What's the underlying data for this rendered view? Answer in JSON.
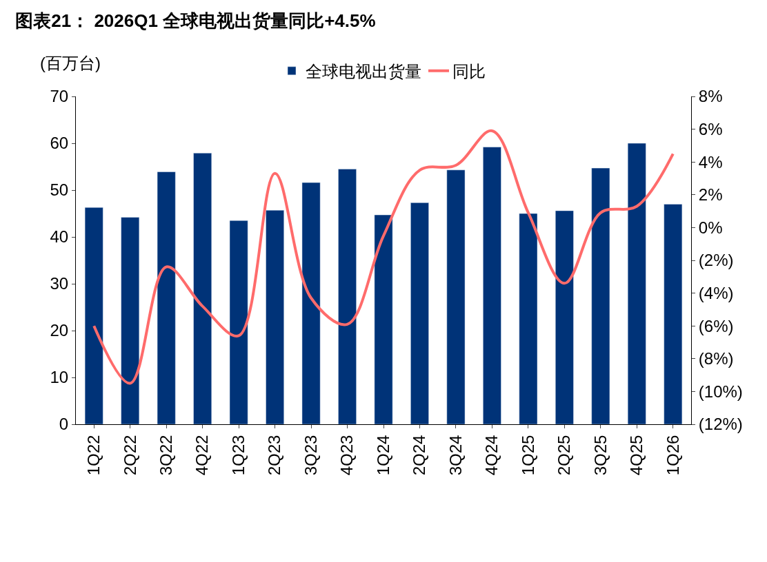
{
  "chart_data": {
    "type": "bar",
    "title": "图表21： 2026Q1 全球电视出货量同比+4.5%",
    "ylabel": "(百万台)",
    "categories": [
      "1Q22",
      "2Q22",
      "3Q22",
      "4Q22",
      "1Q23",
      "2Q23",
      "3Q23",
      "4Q23",
      "1Q24",
      "2Q24",
      "3Q24",
      "4Q24",
      "1Q25",
      "2Q25",
      "3Q25",
      "4Q25",
      "1Q26"
    ],
    "series": [
      {
        "name": "全球电视出货量",
        "color": "#003378",
        "values": [
          46.3,
          44.2,
          53.9,
          57.9,
          43.5,
          45.7,
          51.6,
          54.5,
          44.7,
          47.3,
          54.3,
          59.2,
          45.0,
          45.6,
          54.7,
          60.0,
          47.0
        ]
      },
      {
        "name": "同比",
        "type": "line",
        "axis": "y2",
        "color": "#ff6b6b",
        "values": [
          -6.0,
          -9.5,
          -2.4,
          -4.8,
          -6.6,
          3.3,
          -4.3,
          -5.9,
          -0.5,
          3.5,
          3.8,
          5.9,
          0.9,
          -3.4,
          0.9,
          1.3,
          4.5
        ]
      }
    ],
    "ylim": [
      0,
      70
    ],
    "yticks": [
      0,
      10,
      20,
      30,
      40,
      50,
      60,
      70
    ],
    "y2lim": [
      -12,
      8
    ],
    "y2ticks": [
      {
        "value": -12,
        "label": "(12%)"
      },
      {
        "value": -10,
        "label": "(10%)"
      },
      {
        "value": -8,
        "label": "(8%)"
      },
      {
        "value": -6,
        "label": "(6%)"
      },
      {
        "value": -4,
        "label": "(4%)"
      },
      {
        "value": -2,
        "label": "(2%)"
      },
      {
        "value": 0,
        "label": "0%"
      },
      {
        "value": 2,
        "label": "2%"
      },
      {
        "value": 4,
        "label": "4%"
      },
      {
        "value": 6,
        "label": "6%"
      },
      {
        "value": 8,
        "label": "8%"
      }
    ],
    "legend": "top",
    "marker": "none",
    "line_style": "solid"
  }
}
